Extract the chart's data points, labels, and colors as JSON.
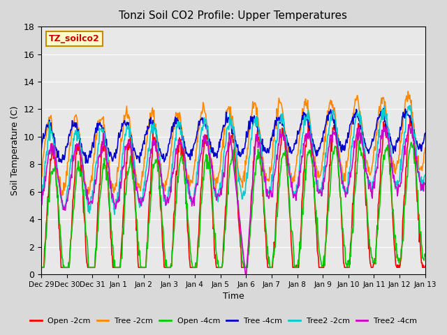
{
  "title": "Tonzi Soil CO2 Profile: Upper Temperatures",
  "xlabel": "Time",
  "ylabel": "Soil Temperature (C)",
  "ylim": [
    0,
    18
  ],
  "background_color": "#d9d9d9",
  "plot_bg_color": "#e8e8e8",
  "watermark_text": "TZ_soilco2",
  "watermark_color": "#cc0000",
  "watermark_bg": "#ffffcc",
  "watermark_border": "#cc8800",
  "colors": {
    "Open -2cm": "#ff0000",
    "Tree -2cm": "#ff8800",
    "Open -4cm": "#00cc00",
    "Tree -4cm": "#0000cc",
    "Tree2 -2cm": "#00cccc",
    "Tree2 -4cm": "#cc00cc"
  },
  "xtick_labels": [
    "Dec 29",
    "Dec 30",
    "Dec 31",
    "Jan 1",
    "Jan 2",
    "Jan 3",
    "Jan 4",
    "Jan 5",
    "Jan 6",
    "Jan 7",
    "Jan 8",
    "Jan 9",
    "Jan 10",
    "Jan 11",
    "Jan 12",
    "Jan 13"
  ],
  "ytick_positions": [
    0,
    2,
    4,
    6,
    8,
    10,
    12,
    14,
    16,
    18
  ],
  "ytick_labels": [
    "0",
    "2",
    "4",
    "6",
    "8",
    "10",
    "12",
    "14",
    "16",
    "18"
  ]
}
